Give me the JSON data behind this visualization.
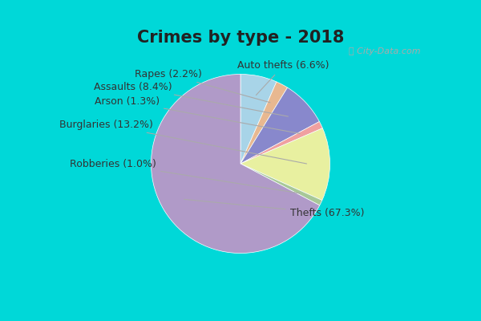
{
  "title": "Crimes by type - 2018",
  "slices_ordered": [
    {
      "label": "Auto thefts",
      "pct": 6.6,
      "color": "#a8d4e8",
      "label_text": "Auto thefts (6.6%)"
    },
    {
      "label": "Rapes",
      "pct": 2.2,
      "color": "#e8b890",
      "label_text": "Rapes (2.2%)"
    },
    {
      "label": "Assaults",
      "pct": 8.4,
      "color": "#8888cc",
      "label_text": "Assaults (8.4%)"
    },
    {
      "label": "Arson",
      "pct": 1.3,
      "color": "#f0a0a0",
      "label_text": "Arson (1.3%)"
    },
    {
      "label": "Burglaries",
      "pct": 13.2,
      "color": "#e8f0a0",
      "label_text": "Burglaries (13.2%)"
    },
    {
      "label": "Robberies",
      "pct": 1.0,
      "color": "#a8c898",
      "label_text": "Robberies (1.0%)"
    },
    {
      "label": "Thefts",
      "pct": 67.3,
      "color": "#b09ac8",
      "label_text": "Thefts (67.3%)"
    }
  ],
  "background_cyan": "#00d8d8",
  "background_inner": "#ddf0e8",
  "title_fontsize": 15,
  "label_fontsize": 9,
  "startangle": 90,
  "label_positions": [
    {
      "xt": 0.12,
      "yt": 0.88
    },
    {
      "xt": -0.22,
      "yt": 0.8
    },
    {
      "xt": -0.5,
      "yt": 0.68
    },
    {
      "xt": -0.62,
      "yt": 0.54
    },
    {
      "xt": -0.68,
      "yt": 0.32
    },
    {
      "xt": -0.65,
      "yt": -0.05
    },
    {
      "xt": 0.62,
      "yt": -0.52
    }
  ]
}
